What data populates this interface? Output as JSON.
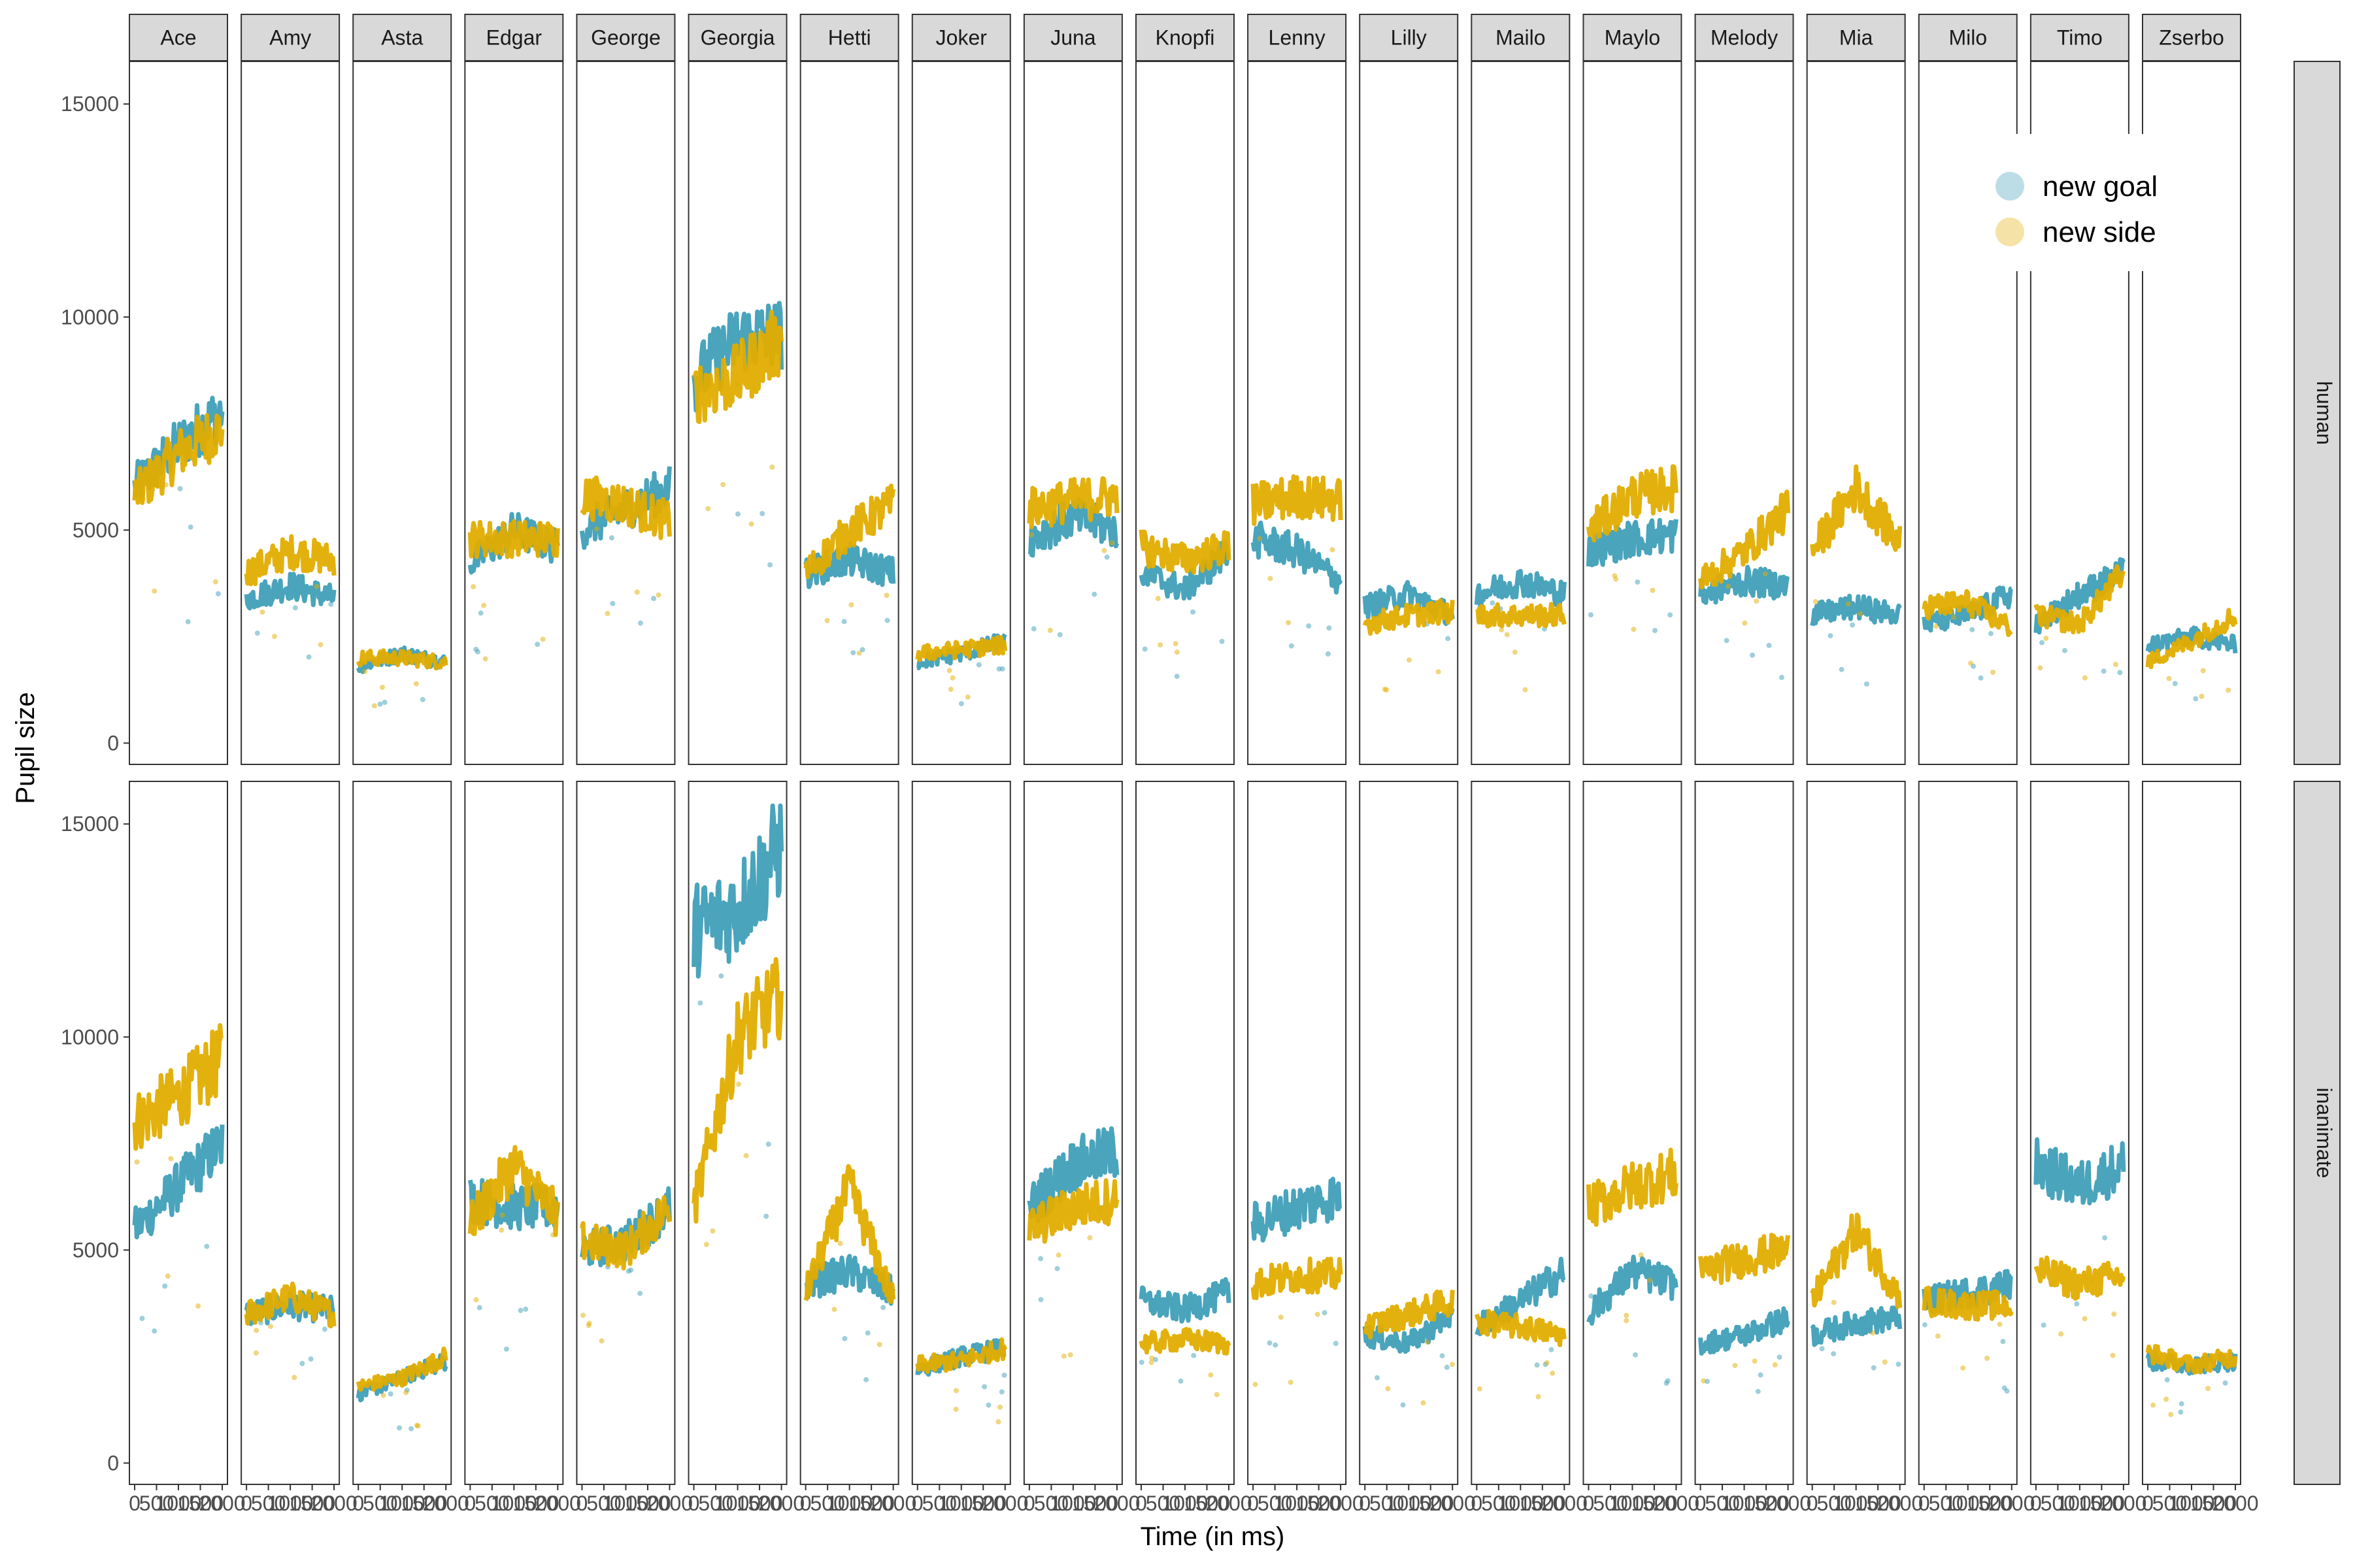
{
  "chart_data": {
    "type": "line",
    "xlabel": "Time (in ms)",
    "ylabel": "Pupil size",
    "ylim": [
      -500,
      16000
    ],
    "yticks": [
      0,
      5000,
      10000,
      15000
    ],
    "xlim": [
      0,
      2000
    ],
    "xticks": [
      0,
      500,
      1000,
      1500,
      2000
    ],
    "xtick_labels": [
      "0",
      "500",
      "1000",
      "1500",
      "2000"
    ],
    "legend": {
      "position": "right-inside",
      "entries": [
        "new goal",
        "new side"
      ]
    },
    "colors": {
      "new goal": "#3f9fb8",
      "new side": "#e2ad00"
    },
    "row_facets": [
      "human",
      "inanimate"
    ],
    "col_facets": [
      "Ace",
      "Amy",
      "Asta",
      "Edgar",
      "George",
      "Georgia",
      "Hetti",
      "Joker",
      "Juna",
      "Knopfi",
      "Lenny",
      "Lilly",
      "Mailo",
      "Maylo",
      "Melody",
      "Mia",
      "Milo",
      "Timo",
      "Zserbo"
    ],
    "series_means": {
      "human": {
        "Ace": [
          [
            6000,
            7000,
            7800
          ],
          [
            5800,
            6800,
            7400
          ]
        ],
        "Amy": [
          [
            3400,
            3700,
            3400
          ],
          [
            4000,
            4500,
            4300
          ]
        ],
        "Asta": [
          [
            1800,
            2100,
            1900
          ],
          [
            2000,
            2000,
            1900
          ]
        ],
        "Edgar": [
          [
            4200,
            5000,
            4600
          ],
          [
            4800,
            4800,
            4800
          ]
        ],
        "George": [
          [
            5000,
            5500,
            6000
          ],
          [
            5800,
            5600,
            5200
          ]
        ],
        "Georgia": [
          [
            8500,
            9500,
            9600
          ],
          [
            8200,
            8600,
            9500
          ]
        ],
        "Hetti": [
          [
            4000,
            4300,
            4000
          ],
          [
            4000,
            5000,
            5600
          ]
        ],
        "Joker": [
          [
            1900,
            2100,
            2400
          ],
          [
            2100,
            2200,
            2300
          ]
        ],
        "Juna": [
          [
            4800,
            5300,
            5000
          ],
          [
            5500,
            5700,
            5800
          ]
        ],
        "Knopfi": [
          [
            4000,
            3600,
            4500
          ],
          [
            4600,
            4300,
            4600
          ]
        ],
        "Lenny": [
          [
            4800,
            4500,
            3800
          ],
          [
            5600,
            5800,
            5700
          ]
        ],
        "Lilly": [
          [
            3200,
            3500,
            3000
          ],
          [
            2800,
            3000,
            3100
          ]
        ],
        "Mailo": [
          [
            3500,
            3800,
            3500
          ],
          [
            3000,
            3000,
            3000
          ]
        ],
        "Maylo": [
          [
            4500,
            4800,
            4900
          ],
          [
            5000,
            5800,
            6000
          ]
        ],
        "Melody": [
          [
            3500,
            3800,
            3700
          ],
          [
            3800,
            4500,
            5500
          ]
        ],
        "Mia": [
          [
            3000,
            3200,
            3000
          ],
          [
            4500,
            6000,
            4700
          ]
        ],
        "Milo": [
          [
            2800,
            3000,
            3500
          ],
          [
            3200,
            3300,
            2700
          ]
        ],
        "Timo": [
          [
            2800,
            3500,
            4000
          ],
          [
            3000,
            2800,
            4000
          ]
        ],
        "Zserbo": [
          [
            2300,
            2500,
            2300
          ],
          [
            1900,
            2400,
            3000
          ]
        ]
      },
      "inanimate": {
        "Ace": [
          [
            5500,
            6500,
            7500
          ],
          [
            8000,
            8600,
            9500
          ]
        ],
        "Amy": [
          [
            3500,
            3700,
            3600
          ],
          [
            3500,
            3900,
            3500
          ]
        ],
        "Asta": [
          [
            1600,
            2000,
            2400
          ],
          [
            1800,
            2000,
            2500
          ]
        ],
        "Edgar": [
          [
            6200,
            6000,
            6000
          ],
          [
            5600,
            7000,
            5800
          ]
        ],
        "George": [
          [
            5000,
            5200,
            6000
          ],
          [
            5200,
            5000,
            6000
          ]
        ],
        "Georgia": [
          [
            12500,
            13000,
            14500
          ],
          [
            6000,
            10000,
            11000
          ]
        ],
        "Hetti": [
          [
            4200,
            4500,
            4000
          ],
          [
            4000,
            6500,
            3800
          ]
        ],
        "Joker": [
          [
            2200,
            2500,
            2700
          ],
          [
            2300,
            2400,
            2700
          ]
        ],
        "Juna": [
          [
            6000,
            7000,
            7300
          ],
          [
            5500,
            6000,
            6200
          ]
        ],
        "Knopfi": [
          [
            3800,
            3600,
            4000
          ],
          [
            2800,
            2900,
            2800
          ]
        ],
        "Lenny": [
          [
            5600,
            6000,
            6300
          ],
          [
            4200,
            4400,
            4400
          ]
        ],
        "Lilly": [
          [
            3000,
            2800,
            3500
          ],
          [
            3200,
            3500,
            3800
          ]
        ],
        "Mailo": [
          [
            3200,
            3800,
            4500
          ],
          [
            3300,
            3200,
            3000
          ]
        ],
        "Maylo": [
          [
            3500,
            4500,
            4200
          ],
          [
            6000,
            6500,
            6800
          ]
        ],
        "Melody": [
          [
            2800,
            3000,
            3400
          ],
          [
            4500,
            4800,
            5000
          ]
        ],
        "Mia": [
          [
            3000,
            3300,
            3400
          ],
          [
            3800,
            5500,
            3900
          ]
        ],
        "Milo": [
          [
            3800,
            4000,
            4200
          ],
          [
            3800,
            3700,
            3700
          ]
        ],
        "Timo": [
          [
            7000,
            6500,
            7000
          ],
          [
            4500,
            4200,
            4400
          ]
        ],
        "Zserbo": [
          [
            2400,
            2300,
            2400
          ],
          [
            2600,
            2300,
            2500
          ]
        ]
      }
    }
  }
}
